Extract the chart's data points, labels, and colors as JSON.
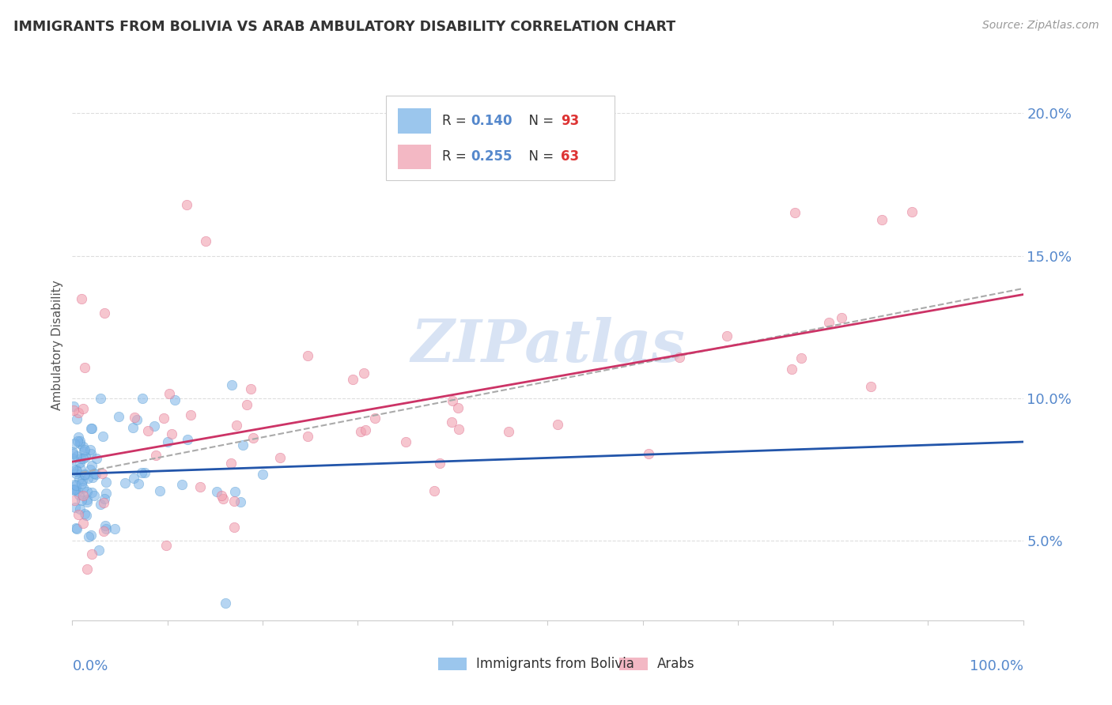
{
  "title": "IMMIGRANTS FROM BOLIVIA VS ARAB AMBULATORY DISABILITY CORRELATION CHART",
  "source": "Source: ZipAtlas.com",
  "ylabel": "Ambulatory Disability",
  "bolivia_color": "#7ab3e8",
  "bolivia_edge_color": "#5a9fd4",
  "arab_color": "#f0a0b0",
  "arab_edge_color": "#e07090",
  "bolivia_line_color": "#2255aa",
  "arab_line_color": "#cc3366",
  "dashed_line_color": "#aaaaaa",
  "background_color": "#ffffff",
  "grid_color": "#dddddd",
  "y_ticks": [
    0.05,
    0.1,
    0.15,
    0.2
  ],
  "y_tick_labels": [
    "5.0%",
    "10.0%",
    "15.0%",
    "20.0%"
  ],
  "ytick_color": "#5588cc",
  "xtick_color": "#5588cc",
  "bolivia_R": 0.14,
  "bolivia_N": 93,
  "arab_R": 0.255,
  "arab_N": 63,
  "watermark_color": "#c8d8f0",
  "legend_R_color": "#5588cc",
  "legend_N_color": "#dd3333"
}
